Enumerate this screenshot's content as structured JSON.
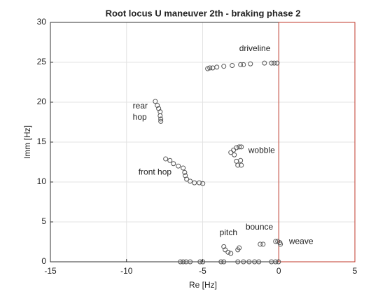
{
  "chart_data": {
    "type": "scatter",
    "title": "Root locus U maneuver 2th - braking phase 2",
    "x_label": "Re [Hz]",
    "y_label": "Imm [Hz]",
    "xlim": [
      -15,
      5
    ],
    "ylim": [
      0,
      30
    ],
    "xticks": [
      -15,
      -10,
      -5,
      0,
      5
    ],
    "yticks": [
      0,
      5,
      10,
      15,
      20,
      25,
      30
    ],
    "grid": true,
    "highlight_region": {
      "x": [
        0,
        5
      ],
      "y": [
        0,
        30
      ],
      "color": "#c0392b"
    },
    "series": [
      {
        "color": "#555555",
        "x": [
          -4.67,
          -4.53,
          -4.34,
          -4.07,
          -3.61,
          -3.06,
          -2.51,
          -2.32,
          -1.86,
          -0.94,
          -0.48,
          -0.3,
          -0.11,
          -8.11,
          -7.98,
          -7.89,
          -7.79,
          -7.79,
          -7.75,
          -7.75,
          -7.43,
          -7.15,
          -6.92,
          -6.6,
          -6.28,
          -6.18,
          -6.14,
          -6.05,
          -5.82,
          -5.54,
          -5.22,
          -4.99,
          -3.15,
          -2.97,
          -2.78,
          -2.6,
          -2.46,
          -2.92,
          -2.78,
          -2.69,
          -2.46,
          -2.51,
          -3.61,
          -3.52,
          -3.33,
          -3.15,
          -2.69,
          -2.6,
          -1.22,
          -1.03,
          -0.21,
          -0.07,
          0.07,
          0.11,
          -6.46,
          -6.28,
          -6.09,
          -5.82,
          -5.17,
          -4.99,
          -3.79,
          -3.61,
          -2.69,
          -2.32,
          -1.95,
          -1.59,
          -1.31,
          -0.48,
          -0.21,
          -0.02
        ],
        "values": [
          24.2,
          24.3,
          24.3,
          24.4,
          24.5,
          24.6,
          24.7,
          24.7,
          24.8,
          24.9,
          24.9,
          24.9,
          24.9,
          20.1,
          19.6,
          19.2,
          18.8,
          18.3,
          17.9,
          17.6,
          12.9,
          12.7,
          12.3,
          12.0,
          11.75,
          11.2,
          10.8,
          10.35,
          10.1,
          9.9,
          9.9,
          9.8,
          13.7,
          14.0,
          14.3,
          14.4,
          14.4,
          13.4,
          12.6,
          12.1,
          12.1,
          12.7,
          1.9,
          1.5,
          1.2,
          1.05,
          1.5,
          1.75,
          2.2,
          2.2,
          2.55,
          2.55,
          2.4,
          2.2,
          0,
          0,
          0,
          0,
          0,
          0,
          0,
          0,
          0,
          0,
          0,
          0,
          0,
          0,
          0,
          0
        ]
      }
    ],
    "annotations": [
      {
        "text": "driveline",
        "x": -2.6,
        "y": 26.7
      },
      {
        "text": "rear",
        "x": -9.59,
        "y": 19.5
      },
      {
        "text": "hop",
        "x": -9.59,
        "y": 18.1
      },
      {
        "text": "wobble",
        "x": -2.0,
        "y": 13.9
      },
      {
        "text": "front hop",
        "x": -9.22,
        "y": 11.2
      },
      {
        "text": "pitch",
        "x": -3.89,
        "y": 3.6
      },
      {
        "text": "bounce",
        "x": -2.18,
        "y": 4.3
      },
      {
        "text": "weave",
        "x": 0.67,
        "y": 2.5
      }
    ]
  }
}
